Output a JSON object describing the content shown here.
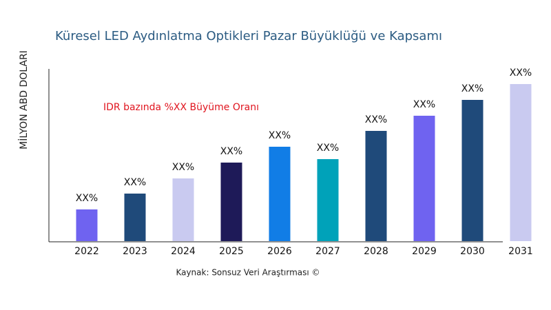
{
  "chart_data": {
    "type": "bar",
    "title": "Küresel LED Aydınlatma Optikleri Pazar Büyüklüğü ve Kapsamı",
    "y_label": "MİLYON ABD DOLARI",
    "annotation": "IDR bazında %XX Büyüme Oranı",
    "source": "Kaynak: Sonsuz Veri Araştırması ©",
    "categories": [
      "2022",
      "2023",
      "2024",
      "2025",
      "2026",
      "2027",
      "2028",
      "2029",
      "2030",
      "2031"
    ],
    "values": [
      46,
      69,
      91,
      114,
      137,
      119,
      160,
      182,
      205,
      228
    ],
    "value_labels": [
      "XX%",
      "XX%",
      "XX%",
      "XX%",
      "XX%",
      "XX%",
      "XX%",
      "XX%",
      "XX%",
      "XX%"
    ],
    "colors": [
      "#6f63f0",
      "#1f4a7a",
      "#c9caf0",
      "#1e1a58",
      "#117de6",
      "#00a2b9",
      "#1f4a7a",
      "#6f63f0",
      "#1f4a7a",
      "#c9caf0"
    ]
  }
}
